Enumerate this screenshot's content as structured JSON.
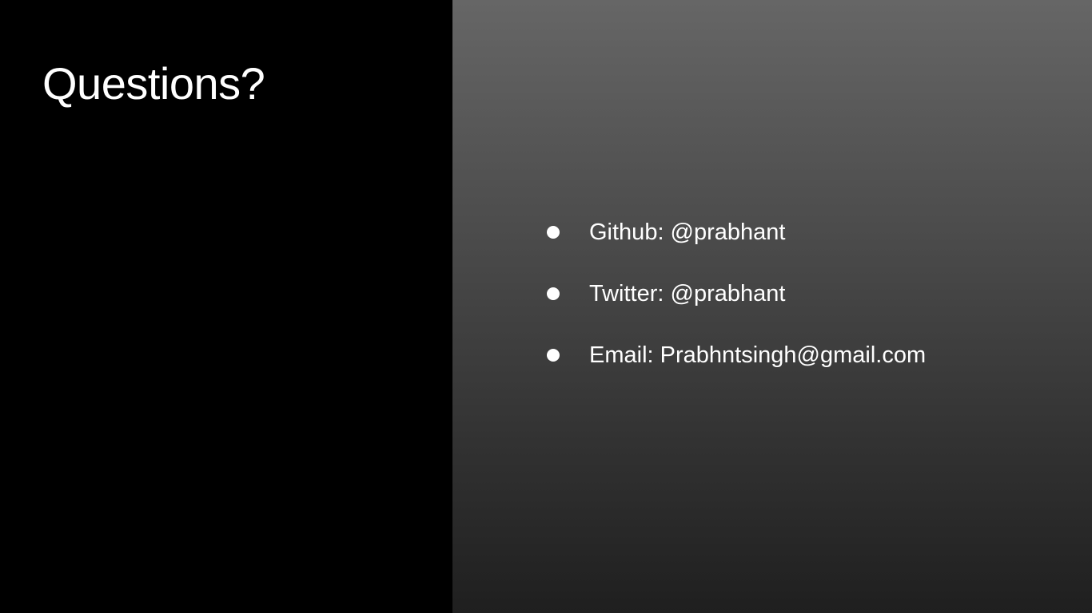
{
  "slide": {
    "title": "Questions?",
    "contacts": [
      {
        "label": "Github: @prabhant"
      },
      {
        "label": "Twitter: @prabhant"
      },
      {
        "label": "Email: Prabhntsingh@gmail.com"
      }
    ]
  },
  "colors": {
    "left_panel": "#000000",
    "right_panel_top": "#666666",
    "right_panel_bottom": "#1f1f1f",
    "text": "#ffffff"
  },
  "icons": {
    "bullet": "bullet-icon"
  }
}
